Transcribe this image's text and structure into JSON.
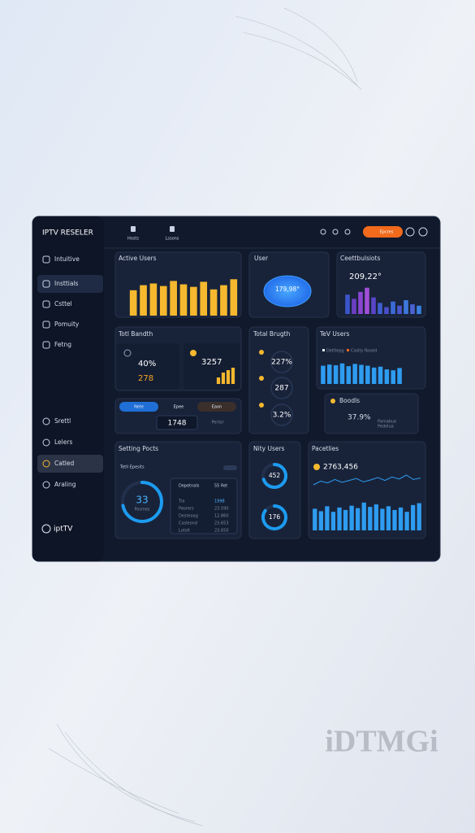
{
  "brand": "IPTV RESELER",
  "nav": [
    "Hosts",
    "Lssons"
  ],
  "header_button": "Epcres",
  "sidebar": {
    "main": [
      "Intuitive",
      "Insttials",
      "Csttel",
      "Pomuity",
      "Fetng"
    ],
    "secondary": [
      "Srettl",
      "Lelers",
      "Catled",
      "Araling"
    ],
    "footer": "iptTV"
  },
  "cards": {
    "active_users": {
      "title": "Active Users",
      "values": [
        60,
        72,
        76,
        70,
        82,
        74,
        68,
        80,
        62,
        72,
        86
      ],
      "ylim": [
        0,
        100
      ],
      "color": "#f5b82e"
    },
    "user": {
      "title": "User",
      "value": "179,98°"
    },
    "contributions": {
      "title": "Ceettbulsiots",
      "value": "209,22°",
      "values": [
        70,
        55,
        80,
        95,
        60,
        40,
        25,
        45,
        30,
        50,
        35,
        30
      ],
      "ylim": [
        0,
        100
      ],
      "colors": [
        "#3b55c9",
        "#6b3fc4",
        "#8a45d1",
        "#a04fd6",
        "#5a46c8",
        "#3e5fd0",
        "#4a4fc9",
        "#3c6ad6",
        "#4a56cc",
        "#3f77dc",
        "#4a63d2",
        "#3a80e0"
      ]
    },
    "total_bandth": {
      "title": "Totl Bandth",
      "value_a": "40%",
      "value_b": "278",
      "value_c": "3257",
      "values": [
        40,
        70,
        85,
        100
      ],
      "ylim": [
        0,
        100
      ],
      "color": "#f5b82e"
    },
    "total_brugth": {
      "title": "Total Brugth",
      "values": [
        "227%",
        "287",
        "3.2%"
      ]
    },
    "tev_users": {
      "title": "TeV Users",
      "legend": [
        "Dettlepg",
        "Coslty Rosed"
      ],
      "values": [
        80,
        85,
        82,
        90,
        78,
        88,
        84,
        80,
        72,
        76,
        64,
        60,
        70
      ],
      "ylim": [
        0,
        100
      ],
      "color": "#2e9cf0"
    },
    "status_row": {
      "pills": [
        "Nete",
        "Epee",
        "Eaon"
      ],
      "value": "1748",
      "label": "Pertor"
    },
    "boodls": {
      "title": "Boodls",
      "value": "37.9%",
      "legend": [
        "Pamabue",
        "Pedelua"
      ]
    },
    "setting_pocts": {
      "title": "Setting Pocts",
      "subtitle": "Tetll Epesits",
      "value": "33",
      "value_label": "Posmes",
      "table": {
        "header": [
          "Depetnals",
          "55 Ret"
        ],
        "rows": [
          [
            "Tra",
            "1998"
          ],
          [
            "Peorers",
            "23.590"
          ],
          [
            "Desteoag",
            "12.860"
          ],
          [
            "Casleond",
            "23.653"
          ],
          [
            "Lotelt",
            "23.650"
          ]
        ]
      }
    },
    "nity_users": {
      "title": "Nity Users",
      "values": [
        "452",
        "176"
      ]
    },
    "pacetlies": {
      "title": "Pacetlies",
      "value": "2763,456",
      "line": [
        40,
        55,
        48,
        62,
        50,
        58,
        66,
        52,
        60,
        70,
        58,
        72,
        64,
        80,
        62,
        68
      ],
      "line_ylim": [
        0,
        100
      ],
      "values": [
        70,
        62,
        78,
        60,
        74,
        66,
        80,
        72,
        90,
        76,
        84,
        70,
        78,
        66,
        74,
        60,
        82,
        88
      ],
      "ylim": [
        0,
        100
      ],
      "color": "#2e9cf0"
    }
  },
  "watermark": "iDTMGi"
}
